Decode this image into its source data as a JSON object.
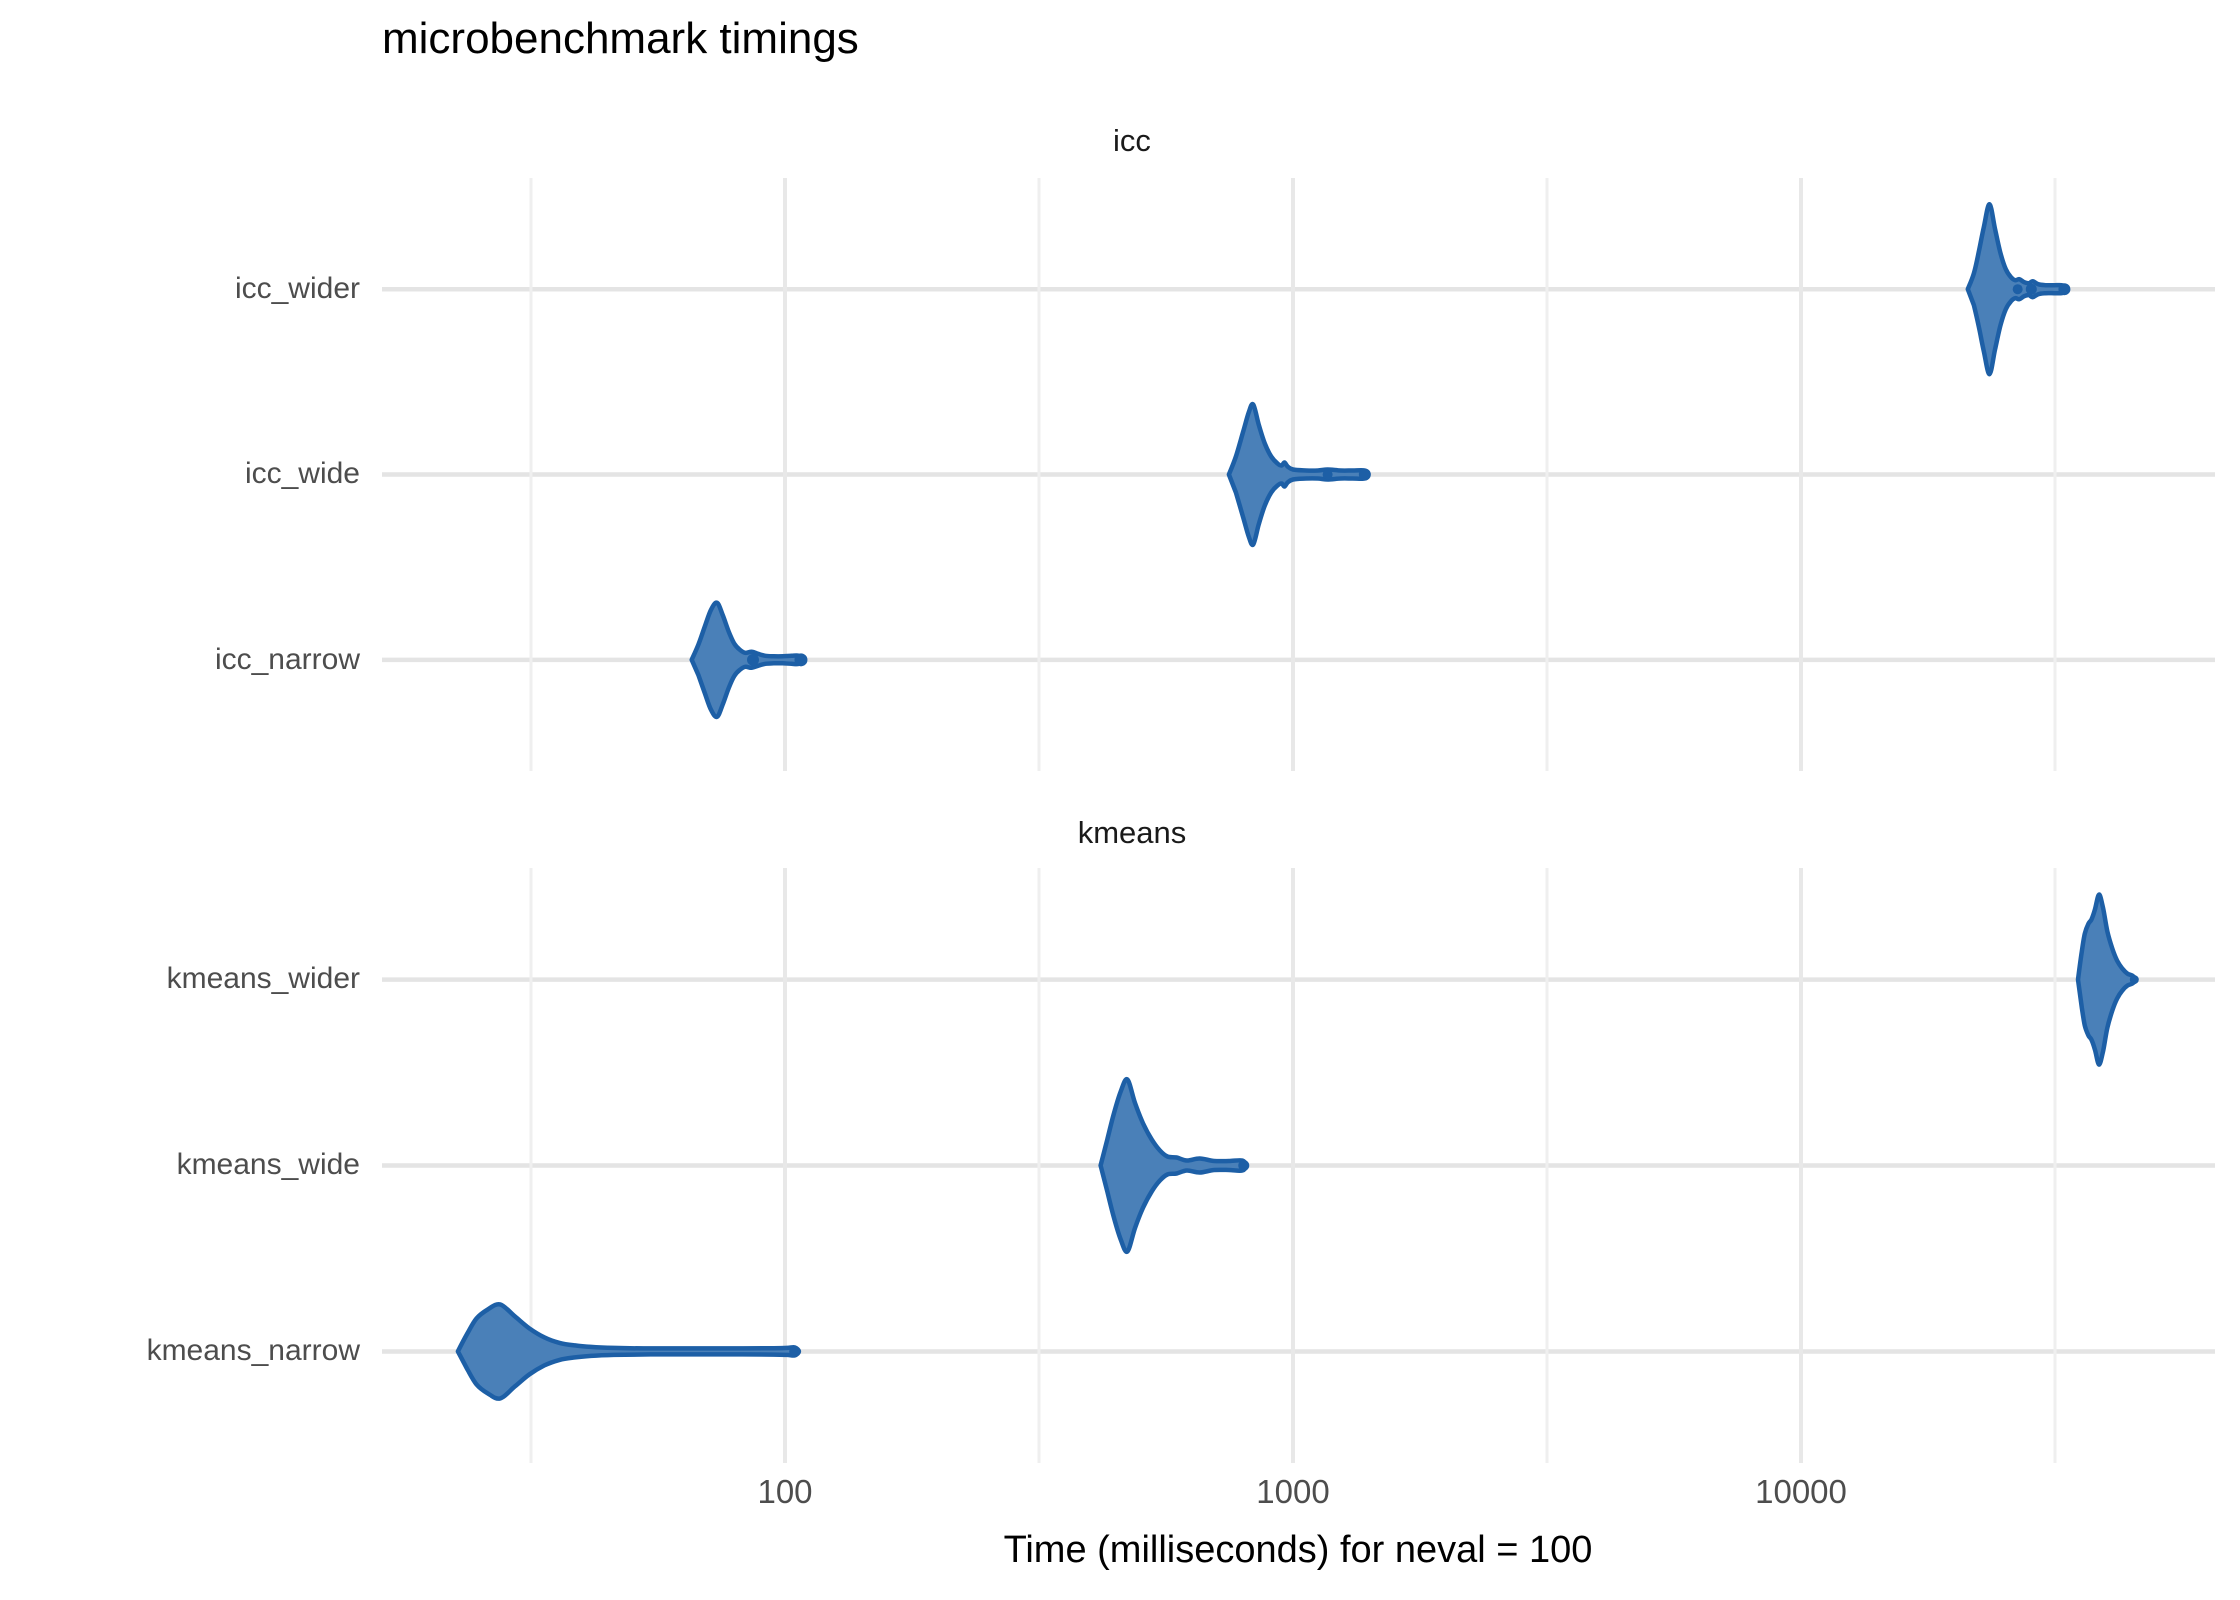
{
  "title": "microbenchmark timings",
  "x_axis": {
    "label": "Time (milliseconds) for neval = 100",
    "scale": "log10",
    "ticks": [
      {
        "label": "100",
        "v": 100
      },
      {
        "label": "1000",
        "v": 1000
      },
      {
        "label": "10000",
        "v": 10000
      }
    ],
    "minor_ticks": [
      31.62,
      316.2,
      3162,
      31623
    ],
    "range_ms": [
      16,
      65000
    ]
  },
  "colors": {
    "violin_fill": "#4a80b8",
    "violin_stroke": "#1d5fa6",
    "grid_row": "#e4e4e4",
    "grid_major": "#e8e8e8",
    "grid_minor": "#efefef",
    "axis_text": "#4d4d4d",
    "strip_text": "#1a1a1a"
  },
  "chart_data": {
    "type": "violin",
    "orientation": "horizontal",
    "x_unit": "milliseconds",
    "grid": "on",
    "legend": "none",
    "facets": [
      {
        "label": "icc",
        "series": [
          {
            "name": "icc_wider",
            "mode_ms": 23500,
            "range_ms": [
              21300,
              33300
            ],
            "profile": [
              [
                21300,
                0
              ],
              [
                21900,
                16
              ],
              [
                22400,
                38
              ],
              [
                22900,
                62
              ],
              [
                23500,
                85
              ],
              [
                24100,
                60
              ],
              [
                24700,
                36
              ],
              [
                25300,
                20
              ],
              [
                25900,
                12
              ],
              [
                26400,
                9
              ],
              [
                26900,
                10
              ],
              [
                27500,
                7
              ],
              [
                28100,
                6
              ],
              [
                28600,
                8
              ],
              [
                29300,
                5
              ],
              [
                30300,
                4
              ],
              [
                31500,
                4
              ],
              [
                32600,
                4
              ],
              [
                33000,
                3
              ],
              [
                33300,
                0
              ]
            ],
            "dots": [
              {
                "v": 26700,
                "r": 5
              },
              {
                "v": 28400,
                "r": 5.5
              },
              {
                "v": 33000,
                "r": 6
              }
            ]
          },
          {
            "name": "icc_wide",
            "mode_ms": 835,
            "range_ms": [
              748,
              1405
            ],
            "profile": [
              [
                748,
                0
              ],
              [
                772,
                18
              ],
              [
                797,
                42
              ],
              [
                818,
                62
              ],
              [
                835,
                70
              ],
              [
                856,
                50
              ],
              [
                880,
                31
              ],
              [
                906,
                18
              ],
              [
                932,
                11
              ],
              [
                950,
                9
              ],
              [
                962,
                12
              ],
              [
                976,
                8
              ],
              [
                1000,
                5
              ],
              [
                1060,
                4
              ],
              [
                1120,
                4
              ],
              [
                1170,
                5
              ],
              [
                1240,
                4
              ],
              [
                1310,
                4
              ],
              [
                1385,
                4
              ],
              [
                1405,
                0
              ]
            ],
            "dots": [
              {
                "v": 1170,
                "r": 5
              },
              {
                "v": 1385,
                "r": 6
              }
            ]
          },
          {
            "name": "icc_narrow",
            "mode_ms": 73.5,
            "range_ms": [
              65.5,
              108.5
            ],
            "profile": [
              [
                65.5,
                0
              ],
              [
                67.5,
                15
              ],
              [
                69.5,
                33
              ],
              [
                71.5,
                50
              ],
              [
                73.5,
                57
              ],
              [
                75.5,
                44
              ],
              [
                77.5,
                28
              ],
              [
                79.5,
                16
              ],
              [
                81.5,
                10
              ],
              [
                83.5,
                7
              ],
              [
                86,
                8
              ],
              [
                88.5,
                6
              ],
              [
                91.5,
                4
              ],
              [
                95,
                3.5
              ],
              [
                99,
                3.5
              ],
              [
                103,
                4
              ],
              [
                106.5,
                4
              ],
              [
                108.5,
                0
              ]
            ],
            "dots": [
              {
                "v": 86.5,
                "r": 6
              },
              {
                "v": 107.5,
                "r": 6.5
              }
            ]
          }
        ]
      },
      {
        "label": "kmeans",
        "series": [
          {
            "name": "kmeans_wider",
            "mode_ms": 38600,
            "range_ms": [
              35100,
              45600
            ],
            "profile": [
              [
                35100,
                0
              ],
              [
                35700,
                28
              ],
              [
                36200,
                46
              ],
              [
                36800,
                56
              ],
              [
                37300,
                60
              ],
              [
                37900,
                70
              ],
              [
                38600,
                85
              ],
              [
                39300,
                72
              ],
              [
                40100,
                48
              ],
              [
                41000,
                31
              ],
              [
                41900,
                19
              ],
              [
                42900,
                11
              ],
              [
                43900,
                6
              ],
              [
                44900,
                4
              ],
              [
                45600,
                0
              ]
            ],
            "dots": [
              {
                "v": 45300,
                "r": 4.5
              }
            ]
          },
          {
            "name": "kmeans_wide",
            "mode_ms": 472,
            "range_ms": [
              418,
              806
            ],
            "profile": [
              [
                418,
                0
              ],
              [
                431,
                26
              ],
              [
                444,
                52
              ],
              [
                458,
                74
              ],
              [
                472,
                86
              ],
              [
                489,
                62
              ],
              [
                507,
                42
              ],
              [
                527,
                26
              ],
              [
                547,
                15
              ],
              [
                566,
                9
              ],
              [
                590,
                8
              ],
              [
                618,
                5
              ],
              [
                655,
                7
              ],
              [
                700,
                4.5
              ],
              [
                748,
                4.5
              ],
              [
                795,
                5
              ],
              [
                806,
                0
              ]
            ],
            "dots": [
              {
                "v": 800,
                "r": 5.5
              }
            ]
          },
          {
            "name": "kmeans_narrow",
            "mode_ms": 27.5,
            "range_ms": [
              22.7,
              106.5
            ],
            "profile": [
              [
                22.7,
                0
              ],
              [
                23.7,
                18
              ],
              [
                24.7,
                33
              ],
              [
                26,
                42
              ],
              [
                27.5,
                47
              ],
              [
                29.4,
                35
              ],
              [
                31.4,
                23
              ],
              [
                33.6,
                14
              ],
              [
                36,
                8.5
              ],
              [
                38.6,
                6
              ],
              [
                41.5,
                4.5
              ],
              [
                46,
                3.5
              ],
              [
                55,
                3
              ],
              [
                68,
                3
              ],
              [
                82,
                3
              ],
              [
                95,
                3.2
              ],
              [
                101,
                3.5
              ],
              [
                104.5,
                4
              ],
              [
                106.5,
                0
              ]
            ],
            "dots": [
              {
                "v": 104,
                "r": 4.5
              }
            ]
          }
        ]
      }
    ]
  }
}
